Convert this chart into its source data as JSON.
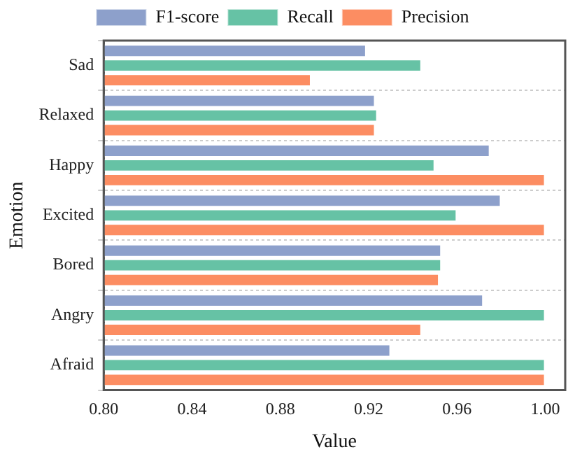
{
  "chart_data": {
    "type": "bar",
    "orientation": "horizontal",
    "xlabel": "Value",
    "ylabel": "Emotion",
    "categories": [
      "Sad",
      "Relaxed",
      "Happy",
      "Excited",
      "Bored",
      "Angry",
      "Afraid"
    ],
    "series": [
      {
        "name": "F1-score",
        "color": "#8da0cb",
        "values": [
          0.919,
          0.923,
          0.975,
          0.98,
          0.953,
          0.972,
          0.93
        ]
      },
      {
        "name": "Recall",
        "color": "#66c2a5",
        "values": [
          0.944,
          0.924,
          0.95,
          0.96,
          0.953,
          1.0,
          1.0
        ]
      },
      {
        "name": "Precision",
        "color": "#fc8d62",
        "values": [
          0.894,
          0.923,
          1.0,
          1.0,
          0.952,
          0.944,
          1.0
        ]
      }
    ],
    "xlim": [
      0.8,
      1.009
    ],
    "xticks": [
      {
        "value": 0.8,
        "label": "0.80"
      },
      0.84,
      0.88,
      0.92,
      0.96,
      {
        "value": 1.0,
        "label": "1.00"
      }
    ],
    "grid": "y",
    "legend": "top"
  }
}
